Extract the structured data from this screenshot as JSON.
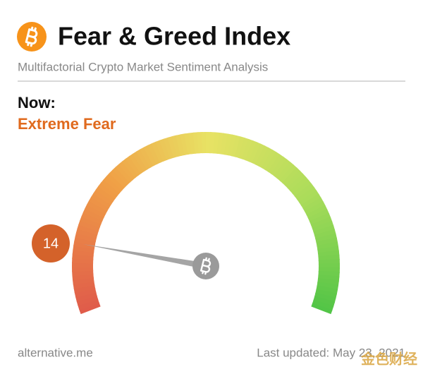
{
  "chart_data": {
    "type": "gauge",
    "title": "Fear & Greed Index",
    "subtitle": "Multifactorial Crypto Market Sentiment Analysis",
    "now_label": "Now:",
    "classification": "Extreme Fear",
    "value": 14,
    "ylim": [
      0,
      100
    ],
    "source": "alternative.me",
    "updated": "Last updated: May 23, 2021",
    "watermark": "金色财经"
  }
}
